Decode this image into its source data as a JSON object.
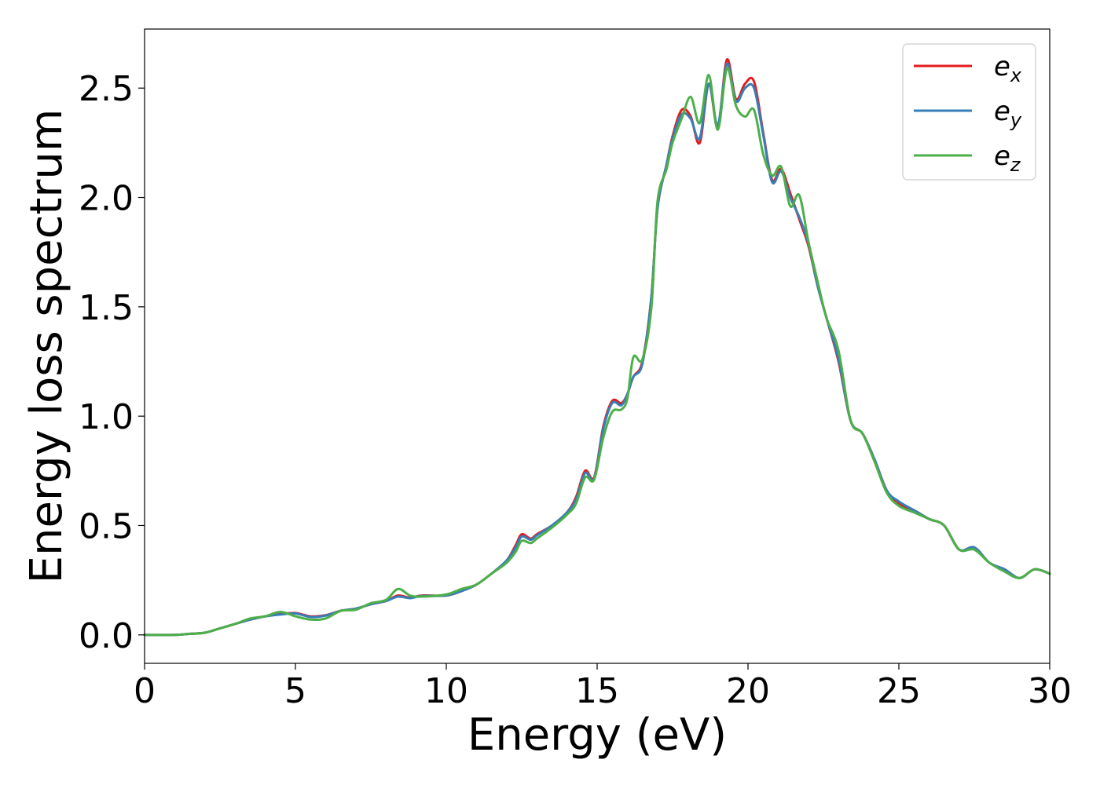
{
  "chart_data": {
    "type": "line",
    "title": "",
    "xlabel": "Energy (eV)",
    "ylabel": "Energy loss spectrum",
    "xlim": [
      0,
      30
    ],
    "ylim": [
      -0.13,
      2.77
    ],
    "xticks": [
      0,
      5,
      10,
      15,
      20,
      25,
      30
    ],
    "xtick_labels": [
      "0",
      "5",
      "10",
      "15",
      "20",
      "25",
      "30"
    ],
    "yticks": [
      0.0,
      0.5,
      1.0,
      1.5,
      2.0,
      2.5
    ],
    "ytick_labels": [
      "0.0",
      "0.5",
      "1.0",
      "1.5",
      "2.0",
      "2.5"
    ],
    "grid": false,
    "legend_position": "top-right",
    "series": [
      {
        "name": "e_x",
        "label_base": "e",
        "label_sub": "x",
        "color": "#e41a1c",
        "points": [
          [
            0,
            0.0
          ],
          [
            1,
            0.0
          ],
          [
            1.5,
            0.005
          ],
          [
            2,
            0.01
          ],
          [
            2.5,
            0.03
          ],
          [
            3,
            0.05
          ],
          [
            3.5,
            0.07
          ],
          [
            4,
            0.085
          ],
          [
            4.5,
            0.095
          ],
          [
            5,
            0.1
          ],
          [
            5.5,
            0.085
          ],
          [
            6,
            0.09
          ],
          [
            6.5,
            0.11
          ],
          [
            7,
            0.12
          ],
          [
            7.5,
            0.14
          ],
          [
            8,
            0.155
          ],
          [
            8.4,
            0.18
          ],
          [
            8.8,
            0.17
          ],
          [
            9.2,
            0.18
          ],
          [
            10,
            0.18
          ],
          [
            10.5,
            0.2
          ],
          [
            11,
            0.23
          ],
          [
            11.5,
            0.28
          ],
          [
            12,
            0.34
          ],
          [
            12.3,
            0.41
          ],
          [
            12.5,
            0.46
          ],
          [
            12.8,
            0.44
          ],
          [
            13,
            0.46
          ],
          [
            13.5,
            0.5
          ],
          [
            14,
            0.56
          ],
          [
            14.3,
            0.63
          ],
          [
            14.6,
            0.75
          ],
          [
            14.9,
            0.72
          ],
          [
            15.2,
            0.95
          ],
          [
            15.5,
            1.07
          ],
          [
            15.8,
            1.06
          ],
          [
            16,
            1.1
          ],
          [
            16.2,
            1.18
          ],
          [
            16.5,
            1.25
          ],
          [
            16.8,
            1.55
          ],
          [
            17,
            1.95
          ],
          [
            17.3,
            2.15
          ],
          [
            17.5,
            2.28
          ],
          [
            17.8,
            2.4
          ],
          [
            18.1,
            2.37
          ],
          [
            18.4,
            2.25
          ],
          [
            18.7,
            2.52
          ],
          [
            19.0,
            2.32
          ],
          [
            19.3,
            2.63
          ],
          [
            19.6,
            2.45
          ],
          [
            19.9,
            2.52
          ],
          [
            20.2,
            2.53
          ],
          [
            20.5,
            2.3
          ],
          [
            20.8,
            2.08
          ],
          [
            21.1,
            2.13
          ],
          [
            21.4,
            2.02
          ],
          [
            21.7,
            1.9
          ],
          [
            22.0,
            1.78
          ],
          [
            22.3,
            1.6
          ],
          [
            22.6,
            1.45
          ],
          [
            23,
            1.25
          ],
          [
            23.4,
            0.98
          ],
          [
            23.8,
            0.92
          ],
          [
            24.2,
            0.8
          ],
          [
            24.6,
            0.66
          ],
          [
            25,
            0.6
          ],
          [
            25.5,
            0.57
          ],
          [
            26,
            0.53
          ],
          [
            26.5,
            0.5
          ],
          [
            27,
            0.39
          ],
          [
            27.5,
            0.4
          ],
          [
            28,
            0.33
          ],
          [
            28.5,
            0.3
          ],
          [
            29,
            0.26
          ],
          [
            29.5,
            0.3
          ],
          [
            30,
            0.28
          ]
        ]
      },
      {
        "name": "e_y",
        "label_base": "e",
        "label_sub": "y",
        "color": "#377eb8",
        "points": [
          [
            0,
            0.0
          ],
          [
            1,
            0.0
          ],
          [
            1.5,
            0.005
          ],
          [
            2,
            0.01
          ],
          [
            2.5,
            0.03
          ],
          [
            3,
            0.05
          ],
          [
            3.5,
            0.07
          ],
          [
            4,
            0.085
          ],
          [
            4.5,
            0.093
          ],
          [
            5,
            0.098
          ],
          [
            5.5,
            0.082
          ],
          [
            6,
            0.088
          ],
          [
            6.5,
            0.11
          ],
          [
            7,
            0.12
          ],
          [
            7.5,
            0.14
          ],
          [
            8,
            0.155
          ],
          [
            8.4,
            0.175
          ],
          [
            8.8,
            0.168
          ],
          [
            9.2,
            0.178
          ],
          [
            10,
            0.18
          ],
          [
            10.5,
            0.2
          ],
          [
            11,
            0.23
          ],
          [
            11.5,
            0.28
          ],
          [
            12,
            0.34
          ],
          [
            12.3,
            0.4
          ],
          [
            12.5,
            0.45
          ],
          [
            12.8,
            0.435
          ],
          [
            13,
            0.455
          ],
          [
            13.5,
            0.5
          ],
          [
            14,
            0.56
          ],
          [
            14.3,
            0.62
          ],
          [
            14.6,
            0.74
          ],
          [
            14.9,
            0.715
          ],
          [
            15.2,
            0.94
          ],
          [
            15.5,
            1.06
          ],
          [
            15.8,
            1.05
          ],
          [
            16,
            1.1
          ],
          [
            16.2,
            1.18
          ],
          [
            16.5,
            1.24
          ],
          [
            16.8,
            1.55
          ],
          [
            17,
            1.95
          ],
          [
            17.3,
            2.15
          ],
          [
            17.5,
            2.27
          ],
          [
            17.8,
            2.38
          ],
          [
            18.1,
            2.36
          ],
          [
            18.4,
            2.27
          ],
          [
            18.7,
            2.52
          ],
          [
            19.0,
            2.33
          ],
          [
            19.3,
            2.61
          ],
          [
            19.6,
            2.44
          ],
          [
            19.9,
            2.5
          ],
          [
            20.2,
            2.5
          ],
          [
            20.5,
            2.29
          ],
          [
            20.8,
            2.07
          ],
          [
            21.1,
            2.12
          ],
          [
            21.4,
            2.0
          ],
          [
            21.7,
            1.91
          ],
          [
            22.0,
            1.79
          ],
          [
            22.3,
            1.6
          ],
          [
            22.6,
            1.45
          ],
          [
            23,
            1.26
          ],
          [
            23.4,
            0.98
          ],
          [
            23.8,
            0.92
          ],
          [
            24.2,
            0.8
          ],
          [
            24.6,
            0.66
          ],
          [
            25,
            0.61
          ],
          [
            25.5,
            0.57
          ],
          [
            26,
            0.53
          ],
          [
            26.5,
            0.5
          ],
          [
            27,
            0.39
          ],
          [
            27.5,
            0.4
          ],
          [
            28,
            0.33
          ],
          [
            28.5,
            0.3
          ],
          [
            29,
            0.26
          ],
          [
            29.5,
            0.3
          ],
          [
            30,
            0.28
          ]
        ]
      },
      {
        "name": "e_z",
        "label_base": "e",
        "label_sub": "z",
        "color": "#4daf4a",
        "points": [
          [
            0,
            0.0
          ],
          [
            1,
            0.0
          ],
          [
            1.5,
            0.005
          ],
          [
            2,
            0.01
          ],
          [
            2.5,
            0.03
          ],
          [
            3,
            0.05
          ],
          [
            3.5,
            0.075
          ],
          [
            4,
            0.085
          ],
          [
            4.5,
            0.105
          ],
          [
            5,
            0.085
          ],
          [
            5.5,
            0.07
          ],
          [
            6,
            0.075
          ],
          [
            6.5,
            0.11
          ],
          [
            7,
            0.115
          ],
          [
            7.5,
            0.145
          ],
          [
            8,
            0.16
          ],
          [
            8.4,
            0.21
          ],
          [
            8.8,
            0.18
          ],
          [
            9.2,
            0.175
          ],
          [
            10,
            0.185
          ],
          [
            10.5,
            0.21
          ],
          [
            11,
            0.23
          ],
          [
            11.5,
            0.28
          ],
          [
            12,
            0.33
          ],
          [
            12.3,
            0.38
          ],
          [
            12.5,
            0.43
          ],
          [
            12.8,
            0.42
          ],
          [
            13,
            0.44
          ],
          [
            13.5,
            0.49
          ],
          [
            14,
            0.55
          ],
          [
            14.3,
            0.6
          ],
          [
            14.6,
            0.72
          ],
          [
            14.9,
            0.71
          ],
          [
            15.2,
            0.9
          ],
          [
            15.5,
            1.02
          ],
          [
            15.8,
            1.03
          ],
          [
            16,
            1.08
          ],
          [
            16.2,
            1.27
          ],
          [
            16.5,
            1.26
          ],
          [
            16.8,
            1.5
          ],
          [
            17,
            1.98
          ],
          [
            17.3,
            2.13
          ],
          [
            17.5,
            2.25
          ],
          [
            17.8,
            2.36
          ],
          [
            18.1,
            2.46
          ],
          [
            18.4,
            2.34
          ],
          [
            18.7,
            2.56
          ],
          [
            19.0,
            2.31
          ],
          [
            19.3,
            2.59
          ],
          [
            19.6,
            2.42
          ],
          [
            19.9,
            2.37
          ],
          [
            20.2,
            2.4
          ],
          [
            20.5,
            2.2
          ],
          [
            20.8,
            2.1
          ],
          [
            21.1,
            2.14
          ],
          [
            21.4,
            1.96
          ],
          [
            21.7,
            2.01
          ],
          [
            22.0,
            1.8
          ],
          [
            22.3,
            1.62
          ],
          [
            22.6,
            1.45
          ],
          [
            23,
            1.3
          ],
          [
            23.4,
            0.98
          ],
          [
            23.8,
            0.92
          ],
          [
            24.2,
            0.79
          ],
          [
            24.6,
            0.65
          ],
          [
            25,
            0.59
          ],
          [
            25.5,
            0.56
          ],
          [
            26,
            0.53
          ],
          [
            26.5,
            0.5
          ],
          [
            27,
            0.39
          ],
          [
            27.5,
            0.39
          ],
          [
            28,
            0.33
          ],
          [
            28.5,
            0.29
          ],
          [
            29,
            0.26
          ],
          [
            29.5,
            0.3
          ],
          [
            30,
            0.28
          ]
        ]
      }
    ]
  }
}
